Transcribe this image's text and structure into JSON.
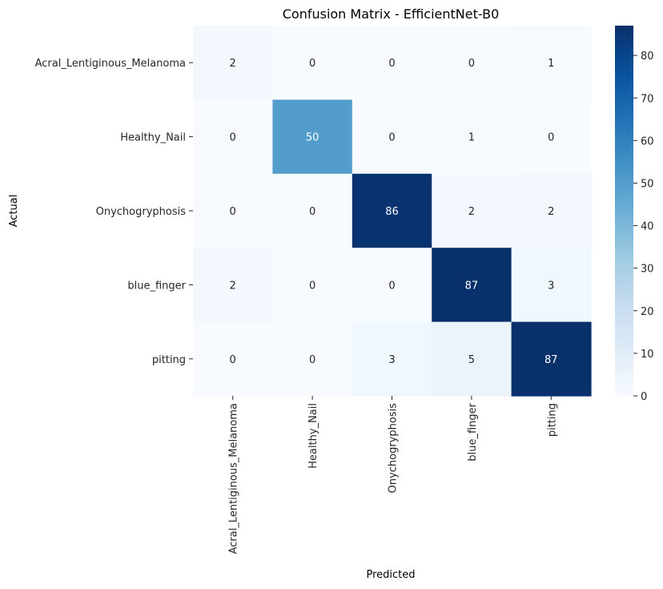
{
  "chart_data": {
    "type": "heatmap",
    "title": "Confusion Matrix - EfficientNet-B0",
    "xlabel": "Predicted",
    "ylabel": "Actual",
    "x_categories": [
      "Acral_Lentiginous_Melanoma",
      "Healthy_Nail",
      "Onychogryphosis",
      "blue_finger",
      "pitting"
    ],
    "y_categories": [
      "Acral_Lentiginous_Melanoma",
      "Healthy_Nail",
      "Onychogryphosis",
      "blue_finger",
      "pitting"
    ],
    "values": [
      [
        2,
        0,
        0,
        0,
        1
      ],
      [
        0,
        50,
        0,
        1,
        0
      ],
      [
        0,
        0,
        86,
        2,
        2
      ],
      [
        2,
        0,
        0,
        87,
        3
      ],
      [
        0,
        0,
        3,
        5,
        87
      ]
    ],
    "colorbar": {
      "min": 0,
      "max": 87,
      "ticks": [
        0,
        10,
        20,
        30,
        40,
        50,
        60,
        70,
        80
      ],
      "colormap": "Blues"
    }
  }
}
